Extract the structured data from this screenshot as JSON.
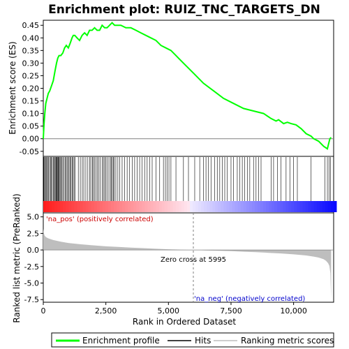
{
  "chart_data": {
    "type": "line",
    "title": "Enrichment plot: RUIZ_TNC_TARGETS_DN",
    "xlabel": "Rank in Ordered Dataset",
    "top_panel": {
      "ylabel": "Enrichment score (ES)",
      "ylim": [
        -0.07,
        0.47
      ],
      "yticks": [
        "0.45",
        "0.40",
        "0.35",
        "0.30",
        "0.25",
        "0.20",
        "0.15",
        "0.10",
        "0.05",
        "0.00",
        "-0.05"
      ],
      "ytick_values": [
        0.45,
        0.4,
        0.35,
        0.3,
        0.25,
        0.2,
        0.15,
        0.1,
        0.05,
        0.0,
        -0.05
      ],
      "series": [
        {
          "name": "Enrichment profile",
          "color": "#00ff00",
          "x": [
            0,
            30,
            60,
            100,
            150,
            200,
            260,
            330,
            400,
            470,
            530,
            580,
            630,
            700,
            780,
            850,
            920,
            1000,
            1080,
            1150,
            1200,
            1260,
            1350,
            1450,
            1550,
            1650,
            1750,
            1850,
            1950,
            2050,
            2150,
            2250,
            2350,
            2450,
            2550,
            2650,
            2750,
            2850,
            2950,
            3100,
            3300,
            3500,
            3700,
            3900,
            4100,
            4300,
            4500,
            4700,
            4900,
            5100,
            5300,
            5600,
            6000,
            6400,
            6800,
            7200,
            7600,
            8000,
            8400,
            8800,
            9100,
            9300,
            9400,
            9600,
            9750,
            9900,
            10100,
            10300,
            10500,
            10700,
            10800,
            11000,
            11200,
            11350,
            11400,
            11450,
            11500
          ],
          "y": [
            0.0,
            0.06,
            0.1,
            0.14,
            0.16,
            0.18,
            0.19,
            0.21,
            0.23,
            0.27,
            0.3,
            0.32,
            0.33,
            0.33,
            0.34,
            0.36,
            0.37,
            0.36,
            0.38,
            0.4,
            0.41,
            0.41,
            0.4,
            0.39,
            0.41,
            0.42,
            0.41,
            0.43,
            0.43,
            0.44,
            0.43,
            0.43,
            0.45,
            0.44,
            0.44,
            0.45,
            0.46,
            0.45,
            0.45,
            0.45,
            0.44,
            0.44,
            0.43,
            0.42,
            0.41,
            0.4,
            0.39,
            0.37,
            0.36,
            0.35,
            0.33,
            0.3,
            0.26,
            0.22,
            0.19,
            0.16,
            0.14,
            0.12,
            0.11,
            0.1,
            0.08,
            0.07,
            0.075,
            0.06,
            0.065,
            0.06,
            0.055,
            0.04,
            0.02,
            0.01,
            0.0,
            -0.01,
            -0.03,
            -0.04,
            -0.02,
            0.0,
            0.005
          ]
        }
      ]
    },
    "hits_panel": {
      "color": "#000000",
      "hit_positions": [
        20,
        50,
        80,
        110,
        140,
        170,
        210,
        250,
        290,
        320,
        360,
        400,
        430,
        470,
        500,
        520,
        540,
        560,
        590,
        610,
        640,
        670,
        700,
        740,
        780,
        820,
        870,
        910,
        950,
        990,
        1030,
        1070,
        1110,
        1150,
        1190,
        1230,
        1270,
        1400,
        1480,
        1560,
        1620,
        1700,
        1780,
        1850,
        1900,
        1960,
        2000,
        2050,
        2100,
        2160,
        2220,
        2280,
        2350,
        2400,
        2450,
        2500,
        2550,
        2620,
        2680,
        2720,
        2760,
        2800,
        2840,
        2900,
        2980,
        3050,
        3150,
        3250,
        3350,
        3450,
        3550,
        3650,
        3750,
        3850,
        3950,
        4050,
        4150,
        4250,
        4350,
        4500,
        4650,
        4800,
        4880,
        4950,
        5020,
        5100,
        5300,
        5600,
        5800,
        6050,
        6250,
        6400,
        6500,
        6600,
        6700,
        6850,
        6950,
        7050,
        7150,
        7250,
        7350,
        7500,
        7600,
        7750,
        7850,
        7950,
        8050,
        8150,
        8250,
        8400,
        8500,
        8600,
        8700,
        9100,
        9200,
        9350,
        9500,
        9700,
        9850,
        10000,
        10150,
        10700,
        11250,
        11350,
        11420,
        11480
      ]
    },
    "ranked_panel": {
      "ylabel": "Ranked list metric (PreRanked)",
      "ylim": [
        -7.9,
        5.6
      ],
      "yticks": [
        "5.0",
        "2.5",
        "0.0",
        "-2.5",
        "-5.0",
        "-7.5"
      ],
      "ytick_values": [
        5.0,
        2.5,
        0.0,
        -2.5,
        -5.0,
        -7.5
      ],
      "fill_color": "#bebebe",
      "x": [
        0,
        20,
        50,
        100,
        200,
        400,
        700,
        1000,
        1500,
        2000,
        2500,
        3000,
        3500,
        4000,
        4500,
        5000,
        5500,
        5995,
        6500,
        7000,
        7500,
        8000,
        8500,
        9000,
        9500,
        10000,
        10500,
        10800,
        11000,
        11200,
        11300,
        11380,
        11430,
        11470,
        11500
      ],
      "values": [
        3.2,
        2.6,
        2.2,
        1.95,
        1.75,
        1.5,
        1.25,
        1.05,
        0.85,
        0.7,
        0.55,
        0.45,
        0.35,
        0.27,
        0.18,
        0.1,
        0.04,
        0.0,
        -0.06,
        -0.12,
        -0.18,
        -0.26,
        -0.34,
        -0.43,
        -0.53,
        -0.66,
        -0.83,
        -1.0,
        -1.15,
        -1.4,
        -1.65,
        -2.0,
        -2.4,
        -3.5,
        -7.5
      ]
    },
    "xlim": [
      0,
      11600
    ],
    "xticks": [
      "0",
      "2,500",
      "5,000",
      "7,500",
      "10,000"
    ],
    "xtick_values": [
      0,
      2500,
      5000,
      7500,
      10000
    ],
    "zero_cross_label": "Zero cross at 5995",
    "zero_cross": 5995,
    "pos_label": "'na_pos' (positively correlated)",
    "neg_label": "'na_neg' (negatively correlated)",
    "pos_label_color": "#cc0000",
    "neg_label_color": "#0000cc",
    "legend": {
      "placement": "bottom",
      "entries": [
        "Enrichment profile",
        "Hits",
        "Ranking metric scores"
      ],
      "colors": [
        "#00ff00",
        "#000000",
        "#bebebe"
      ]
    }
  }
}
